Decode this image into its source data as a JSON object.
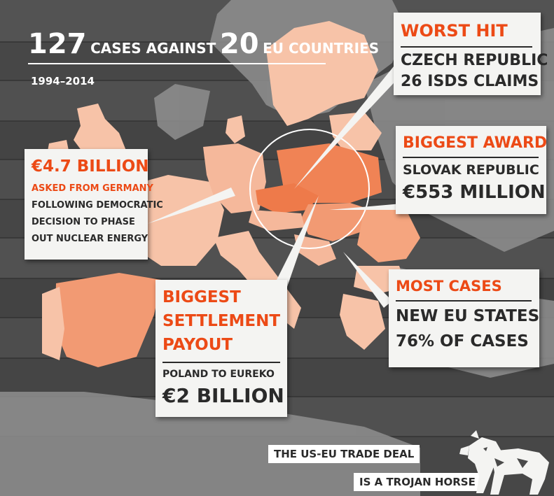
{
  "headline": {
    "cases_count": "127",
    "cases_label": "cases against",
    "countries_count": "20",
    "countries_label": "EU countries",
    "period": "1994–2014"
  },
  "worst_hit": {
    "title": "Worst hit",
    "country": "Czech Republic",
    "claims": "26 ISDS claims"
  },
  "biggest_award": {
    "title": "Biggest award",
    "country": "Slovak Republic",
    "amount": "€553 million"
  },
  "germany": {
    "amount": "€4.7 billion",
    "subtitle": "Asked from Germany",
    "line1": "following democratic",
    "line2": "decision to phase",
    "line3": "out nuclear energy"
  },
  "settlement": {
    "title_line1": "Biggest",
    "title_line2": "settlement",
    "title_line3": "payout",
    "subtitle": "Poland to Eureko",
    "amount": "€2 billion"
  },
  "most_cases": {
    "title": "Most cases",
    "line1": "New EU states",
    "line2": "76% of cases"
  },
  "banner": {
    "line1": "The US-EU trade deal",
    "line2": "is a Trojan horse"
  },
  "colors": {
    "accent": "#ec4a16",
    "dark_text": "#2a2a2a",
    "card_bg": "#f4f4f2",
    "highlight_country": "#f08355",
    "light_country": "#f7c3a8",
    "mid_country": "#f5a57f",
    "background_wood": "#4b4b4b"
  },
  "icons": {
    "horse": "trojan-horse-icon"
  }
}
